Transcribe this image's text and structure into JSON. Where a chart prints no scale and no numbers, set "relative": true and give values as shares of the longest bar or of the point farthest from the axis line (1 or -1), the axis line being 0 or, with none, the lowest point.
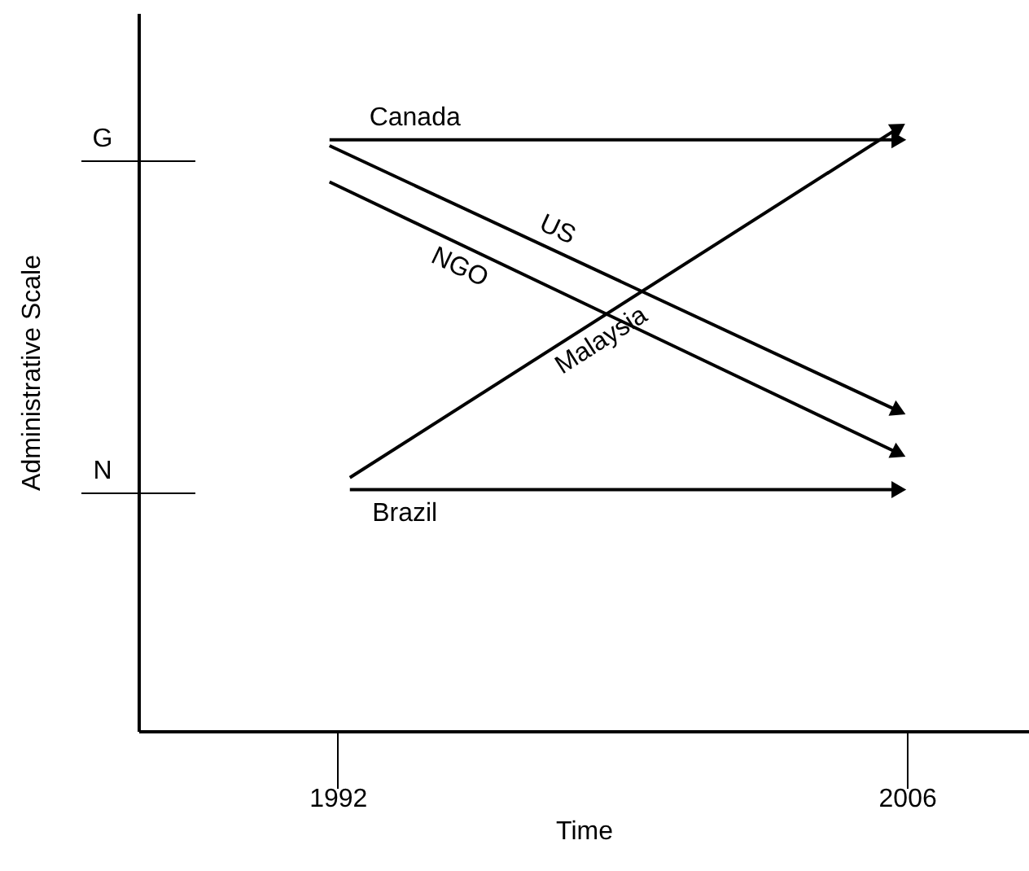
{
  "chart_data": {
    "type": "line",
    "xlabel": "Time",
    "ylabel": "Administrative Scale",
    "xlim": [
      1987.1,
      2009.0
    ],
    "xticks": [
      1992,
      2006
    ],
    "relative": true,
    "annotations": [
      "G",
      "N"
    ],
    "grid": false,
    "line_style": "solid",
    "series": [
      {
        "name": "Canada",
        "color": "#000000",
        "x": [
          1991.8,
          2005.8
        ],
        "values": [
          0.98,
          0.98
        ]
      },
      {
        "name": "US",
        "color": "#000000",
        "x": [
          1991.8,
          2005.8
        ],
        "values": [
          0.97,
          0.53
        ]
      },
      {
        "name": "NGO",
        "color": "#000000",
        "x": [
          1991.8,
          2005.8
        ],
        "values": [
          0.91,
          0.46
        ]
      },
      {
        "name": "Malaysia",
        "color": "#000000",
        "x": [
          1992.3,
          2005.8
        ],
        "values": [
          0.42,
          1.0
        ]
      },
      {
        "name": "Brazil",
        "color": "#000000",
        "x": [
          1992.3,
          2005.8
        ],
        "values": [
          0.4,
          0.4
        ]
      }
    ]
  }
}
